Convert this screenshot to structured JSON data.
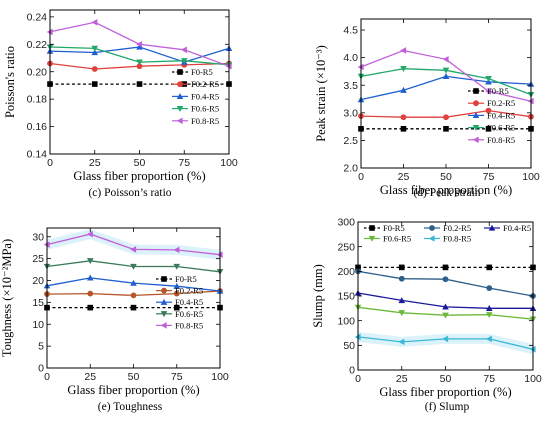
{
  "chart_data": [
    {
      "type": "line",
      "caption": "(c) Poisson’s ratio",
      "xlabel": "Glass fiber proportion (%)",
      "ylabel": "Poisson's ratio",
      "x": [
        0,
        25,
        50,
        75,
        100
      ],
      "xlim": [
        0,
        100
      ],
      "ylim": [
        0.14,
        0.245
      ],
      "xticks": [
        0,
        25,
        50,
        75,
        100
      ],
      "yticks": [
        0.14,
        0.16,
        0.18,
        0.2,
        0.22,
        0.24
      ],
      "ytick_labels": [
        "0.14",
        "0.16",
        "0.18",
        "0.20",
        "0.22",
        "0.24"
      ],
      "legend": "bottom-right",
      "band": false,
      "series": [
        {
          "name": "F0-R5",
          "values": [
            0.191,
            0.191,
            0.191,
            0.191,
            0.191
          ],
          "color": "#000000",
          "marker": "square",
          "dashed": true
        },
        {
          "name": "F0.2-R5",
          "values": [
            0.206,
            0.202,
            0.204,
            0.205,
            0.206
          ],
          "color": "#e0413c",
          "marker": "circle"
        },
        {
          "name": "F0.4-R5",
          "values": [
            0.215,
            0.214,
            0.218,
            0.207,
            0.217
          ],
          "color": "#1f5fd0",
          "marker": "triangle-up"
        },
        {
          "name": "F0.6-R5",
          "values": [
            0.218,
            0.217,
            0.207,
            0.208,
            0.205
          ],
          "color": "#22a86a",
          "marker": "triangle-down"
        },
        {
          "name": "F0.8-R5",
          "values": [
            0.229,
            0.236,
            0.22,
            0.216,
            0.204
          ],
          "color": "#c060d8",
          "marker": "triangle-left"
        }
      ]
    },
    {
      "type": "line",
      "caption": "(d) Peak strain",
      "xlabel": "Glass fiber proportion (%)",
      "ylabel": "Peak strain (×10⁻³)",
      "x": [
        0,
        25,
        50,
        75,
        100
      ],
      "xlim": [
        0,
        100
      ],
      "ylim": [
        2.0,
        4.7
      ],
      "xticks": [
        0,
        25,
        50,
        75,
        100
      ],
      "yticks": [
        2.0,
        2.5,
        3.0,
        3.5,
        4.0,
        4.5
      ],
      "ytick_labels": [
        "2.0",
        "2.5",
        "3.0",
        "3.5",
        "4.0",
        "4.5"
      ],
      "legend": "bottom-right",
      "band": false,
      "series": [
        {
          "name": "F0-R5",
          "values": [
            2.71,
            2.71,
            2.71,
            2.71,
            2.71
          ],
          "color": "#000000",
          "marker": "square",
          "dashed": true
        },
        {
          "name": "F0.2-R5",
          "values": [
            2.94,
            2.92,
            2.92,
            3.04,
            2.93
          ],
          "color": "#e0413c",
          "marker": "circle"
        },
        {
          "name": "F0.4-R5",
          "values": [
            3.24,
            3.41,
            3.66,
            3.56,
            3.52
          ],
          "color": "#1f5fd0",
          "marker": "triangle-up"
        },
        {
          "name": "F0.6-R5",
          "values": [
            3.66,
            3.8,
            3.77,
            3.62,
            3.33
          ],
          "color": "#22a86a",
          "marker": "triangle-down"
        },
        {
          "name": "F0.8-R5",
          "values": [
            3.83,
            4.13,
            3.97,
            3.39,
            3.21
          ],
          "color": "#c060d8",
          "marker": "triangle-left"
        }
      ]
    },
    {
      "type": "line",
      "caption": "(e) Toughness",
      "xlabel": "Glass fiber proportion (%)",
      "ylabel": "Toughness (×10⁻²MPa)",
      "x": [
        0,
        25,
        50,
        75,
        100
      ],
      "xlim": [
        0,
        100
      ],
      "ylim": [
        0,
        32
      ],
      "xticks": [
        0,
        25,
        50,
        75,
        100
      ],
      "yticks": [
        0,
        5,
        10,
        15,
        20,
        25,
        30
      ],
      "ytick_labels": [
        "0",
        "5",
        "10",
        "15",
        "20",
        "25",
        "30"
      ],
      "legend": "bottom-right",
      "band": true,
      "series": [
        {
          "name": "F0-R5",
          "values": [
            13.8,
            13.8,
            13.8,
            13.8,
            13.8
          ],
          "color": "#000000",
          "marker": "square",
          "dashed": true
        },
        {
          "name": "F0.2-R5",
          "values": [
            16.9,
            17.0,
            16.6,
            17.0,
            17.6
          ],
          "color": "#b5562a",
          "marker": "circle"
        },
        {
          "name": "F0.4-R5",
          "values": [
            18.8,
            20.6,
            19.4,
            18.7,
            17.6
          ],
          "color": "#1f5fd0",
          "marker": "triangle-up"
        },
        {
          "name": "F0.6-R5",
          "values": [
            23.2,
            24.5,
            23.2,
            23.2,
            22.0
          ],
          "color": "#3a7a5a",
          "marker": "triangle-down"
        },
        {
          "name": "F0.8-R5",
          "values": [
            28.2,
            30.6,
            27.1,
            27.0,
            25.9
          ],
          "color": "#c060d8",
          "marker": "triangle-left"
        }
      ]
    },
    {
      "type": "line",
      "caption": "(f) Slump",
      "xlabel": "Glass fiber proportion (%)",
      "ylabel": "Slump (mm)",
      "x": [
        0,
        25,
        50,
        75,
        100
      ],
      "xlim": [
        0,
        100
      ],
      "ylim": [
        0,
        300
      ],
      "xticks": [
        0,
        25,
        50,
        75,
        100
      ],
      "yticks": [
        0,
        50,
        100,
        150,
        200,
        250,
        300
      ],
      "ytick_labels": [
        "0",
        "50",
        "100",
        "150",
        "200",
        "250",
        "300"
      ],
      "legend": "top",
      "band": true,
      "series": [
        {
          "name": "F0-R5",
          "values": [
            208,
            208,
            208,
            208,
            208
          ],
          "color": "#000000",
          "marker": "square",
          "dashed": true
        },
        {
          "name": "F0.2-R5",
          "values": [
            200,
            185,
            184,
            166,
            150
          ],
          "color": "#2d5f8a",
          "marker": "circle"
        },
        {
          "name": "F0.4-R5",
          "values": [
            156,
            141,
            128,
            125,
            125
          ],
          "color": "#1a1a9a",
          "marker": "triangle-up"
        },
        {
          "name": "F0.6-R5",
          "values": [
            127,
            116,
            111,
            112,
            103
          ],
          "color": "#6bb83a",
          "marker": "triangle-down"
        },
        {
          "name": "F0.8-R5",
          "values": [
            67,
            57,
            63,
            63,
            42
          ],
          "color": "#3ab8d8",
          "marker": "triangle-left"
        }
      ]
    }
  ]
}
